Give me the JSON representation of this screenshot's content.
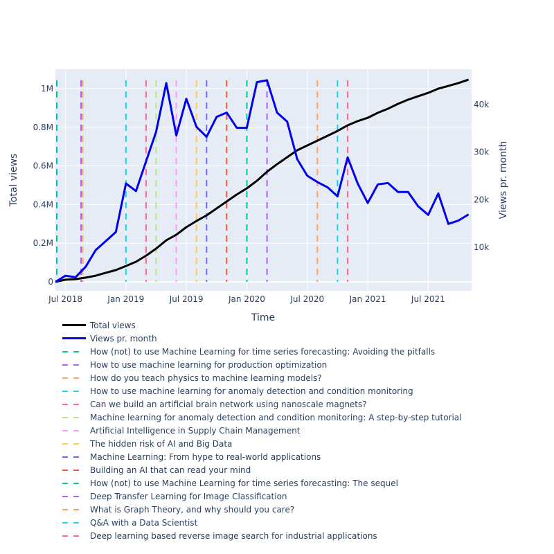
{
  "chart_data": {
    "type": "line",
    "title": "",
    "xlabel": "Time",
    "ylabel": "Total views",
    "y2label": "Views pr. month",
    "x_ticks": [
      "Jul 2018",
      "Jan 2019",
      "Jul 2019",
      "Jan 2020",
      "Jul 2020",
      "Jan 2021",
      "Jul 2021"
    ],
    "y_ticks": [
      "0",
      "0.2M",
      "0.4M",
      "0.6M",
      "0.8M",
      "1M"
    ],
    "y2_ticks": [
      "10k",
      "20k",
      "30k",
      "40k"
    ],
    "ylim": [
      -50000,
      1100000
    ],
    "y2lim": [
      0,
      47000
    ],
    "grid": true,
    "legend_position": "bottom-left",
    "x": [
      "2018-06",
      "2018-07",
      "2018-08",
      "2018-09",
      "2018-10",
      "2018-11",
      "2018-12",
      "2019-01",
      "2019-02",
      "2019-03",
      "2019-04",
      "2019-05",
      "2019-06",
      "2019-07",
      "2019-08",
      "2019-09",
      "2019-10",
      "2019-11",
      "2019-12",
      "2020-01",
      "2020-02",
      "2020-03",
      "2020-04",
      "2020-05",
      "2020-06",
      "2020-07",
      "2020-08",
      "2020-09",
      "2020-10",
      "2020-11",
      "2020-12",
      "2021-01",
      "2021-02",
      "2021-03",
      "2021-04",
      "2021-05",
      "2021-06",
      "2021-07",
      "2021-08",
      "2021-09",
      "2021-10",
      "2021-11"
    ],
    "series": [
      {
        "name": "Total views",
        "axis": "y",
        "color": "#000000",
        "values": [
          0,
          11000,
          14000,
          22000,
          32000,
          47000,
          61000,
          82000,
          104000,
          136000,
          172000,
          215000,
          244000,
          283000,
          315000,
          344000,
          380000,
          416000,
          452000,
          484000,
          523000,
          570000,
          609000,
          645000,
          681000,
          706000,
          731000,
          756000,
          781000,
          810000,
          832000,
          849000,
          875000,
          896000,
          921000,
          943000,
          961000,
          978000,
          1000000,
          1014000,
          1029000,
          1047000
        ]
      },
      {
        "name": "Views pr. month",
        "axis": "y2",
        "color": "#0000ee",
        "values": [
          2700,
          4000,
          3700,
          5900,
          9400,
          11300,
          13200,
          23400,
          21800,
          28100,
          34300,
          44500,
          33500,
          41200,
          35300,
          33200,
          37400,
          38300,
          35100,
          35100,
          44700,
          45100,
          38300,
          36400,
          28500,
          25000,
          23700,
          22600,
          20700,
          28900,
          23400,
          19300,
          23200,
          23500,
          21600,
          21600,
          18600,
          16800,
          21300,
          14900,
          15600,
          16900
        ]
      }
    ],
    "events": [
      {
        "name": "How (not) to use Machine Learning for time series forecasting: Avoiding the pitfalls",
        "date": "2018-06",
        "color": "#00cc96"
      },
      {
        "name": "How to use machine learning for production optimization",
        "date": "2018-08",
        "color": "#ab63fa"
      },
      {
        "name": "How do you teach physics to machine learning models?",
        "date": "2018-08",
        "color": "#ffa15a"
      },
      {
        "name": "How to use machine learning for anomaly detection and condition monitoring",
        "date": "2019-01",
        "color": "#19d3f3"
      },
      {
        "name": "Can we build an artificial brain network using nanoscale magnets?",
        "date": "2019-03",
        "color": "#ff6692"
      },
      {
        "name": "Machine learning for anomaly detection and condition monitoring: A step-by-step tutorial",
        "date": "2019-04",
        "color": "#b6e880"
      },
      {
        "name": "Artificial Intelligence in Supply Chain Management",
        "date": "2019-06",
        "color": "#ff97ff"
      },
      {
        "name": "The hidden risk of AI and Big Data",
        "date": "2019-08",
        "color": "#fecb52"
      },
      {
        "name": "Machine Learning: From hype to real-world applications",
        "date": "2019-09",
        "color": "#636efa"
      },
      {
        "name": "Building an AI that can read your mind",
        "date": "2019-11",
        "color": "#ef553b"
      },
      {
        "name": "How (not) to use Machine Learning for time series forecasting: The sequel",
        "date": "2020-01",
        "color": "#00cc96"
      },
      {
        "name": "Deep Transfer Learning for Image Classification",
        "date": "2020-03",
        "color": "#ab63fa"
      },
      {
        "name": "What is Graph Theory, and why should you care?",
        "date": "2020-08",
        "color": "#ffa15a"
      },
      {
        "name": "Q&A with a Data Scientist",
        "date": "2020-10",
        "color": "#19d3f3"
      },
      {
        "name": "Deep learning based reverse image search for industrial applications",
        "date": "2020-11",
        "color": "#ff6692"
      }
    ]
  },
  "layout": {
    "plot_bg": "#e5ecf6",
    "grid_color": "#ffffff",
    "text_color": "#2a3f5f"
  }
}
